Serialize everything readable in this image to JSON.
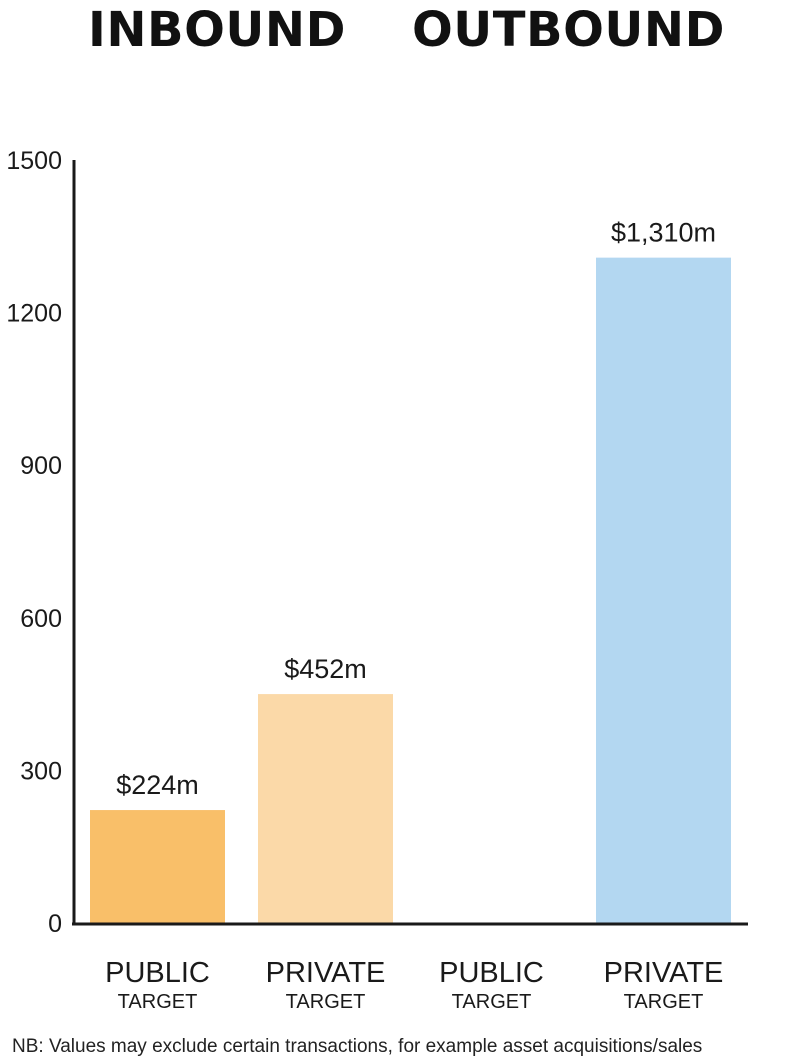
{
  "headings": {
    "inbound": "INBOUND",
    "outbound": "OUTBOUND"
  },
  "note": "NB: Values may exclude certain transactions, for example asset acquisitions/sales",
  "chart_data": {
    "type": "bar",
    "title": "",
    "xlabel": "",
    "ylabel": "",
    "ylim": [
      0,
      1500
    ],
    "yticks": [
      0,
      300,
      600,
      900,
      1200,
      1500
    ],
    "grid": false,
    "groups": [
      "INBOUND",
      "OUTBOUND"
    ],
    "categories": [
      {
        "group": "INBOUND",
        "label_main": "PUBLIC",
        "label_sub": "TARGET"
      },
      {
        "group": "INBOUND",
        "label_main": "PRIVATE",
        "label_sub": "TARGET"
      },
      {
        "group": "OUTBOUND",
        "label_main": "PUBLIC",
        "label_sub": "TARGET"
      },
      {
        "group": "OUTBOUND",
        "label_main": "PRIVATE",
        "label_sub": "TARGET"
      }
    ],
    "values": [
      224,
      452,
      0,
      1310
    ],
    "data_labels": [
      "$224m",
      "$452m",
      "",
      "$1,310m"
    ],
    "colors": [
      "#f9bf69",
      "#fbd9a8",
      "#ffffff",
      "#b3d7f1"
    ]
  }
}
